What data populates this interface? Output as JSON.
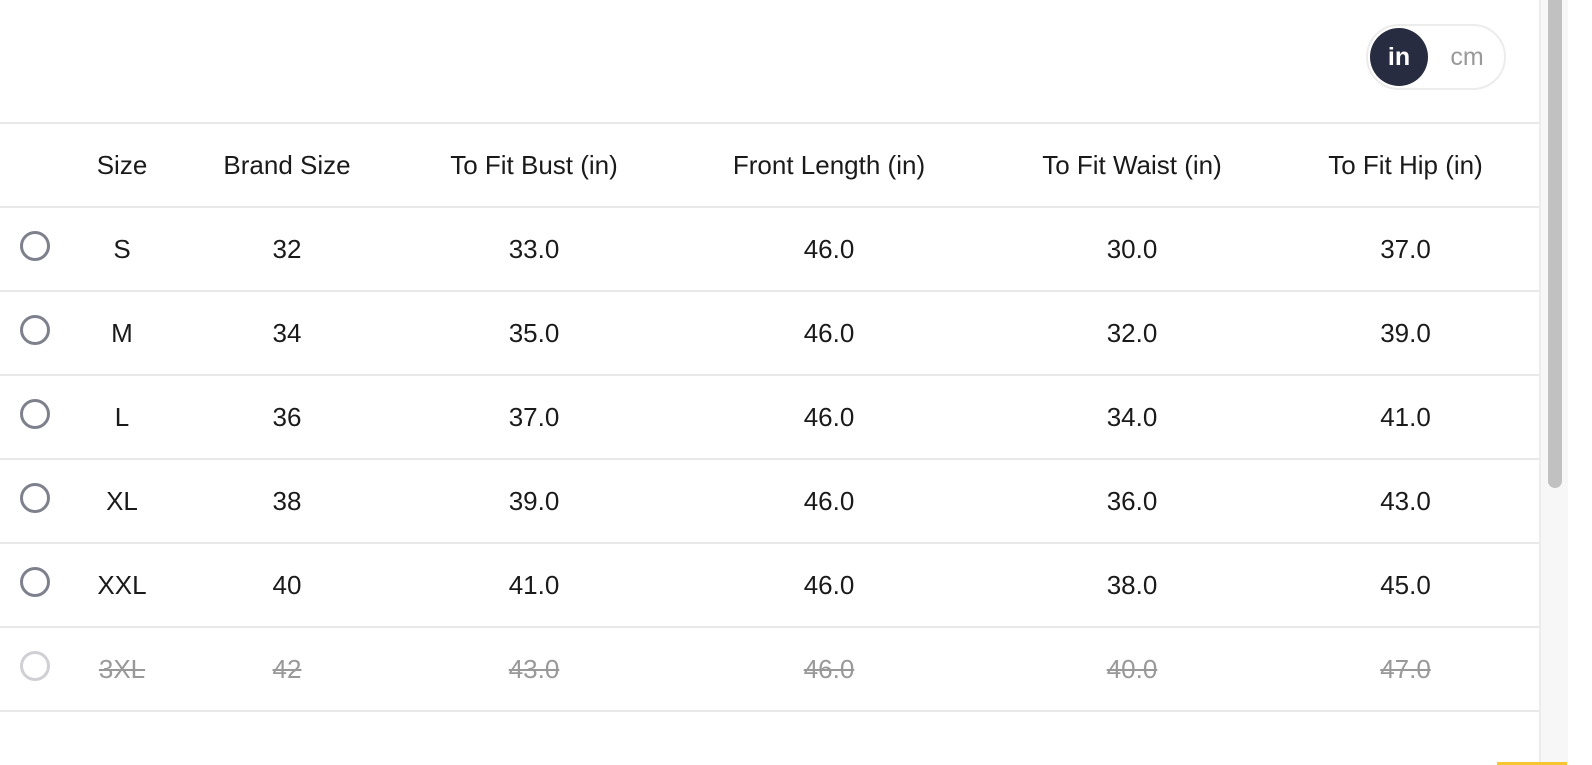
{
  "unit_toggle": {
    "options": [
      "in",
      "cm"
    ],
    "selected": "in"
  },
  "table": {
    "headers": [
      "",
      "Size",
      "Brand Size",
      "To Fit Bust (in)",
      "Front Length (in)",
      "To Fit Waist (in)",
      "To Fit Hip (in)"
    ],
    "rows": [
      {
        "cells": [
          "S",
          "32",
          "33.0",
          "46.0",
          "30.0",
          "37.0"
        ],
        "available": true
      },
      {
        "cells": [
          "M",
          "34",
          "35.0",
          "46.0",
          "32.0",
          "39.0"
        ],
        "available": true
      },
      {
        "cells": [
          "L",
          "36",
          "37.0",
          "46.0",
          "34.0",
          "41.0"
        ],
        "available": true
      },
      {
        "cells": [
          "XL",
          "38",
          "39.0",
          "46.0",
          "36.0",
          "43.0"
        ],
        "available": true
      },
      {
        "cells": [
          "XXL",
          "40",
          "41.0",
          "46.0",
          "38.0",
          "45.0"
        ],
        "available": true
      },
      {
        "cells": [
          "3XL",
          "42",
          "43.0",
          "46.0",
          "40.0",
          "47.0"
        ],
        "available": false
      }
    ]
  },
  "colors": {
    "toggle_active": "#282c40",
    "radio": "#7e818d",
    "disabled_text": "#999999",
    "accent": "#f7c531"
  }
}
